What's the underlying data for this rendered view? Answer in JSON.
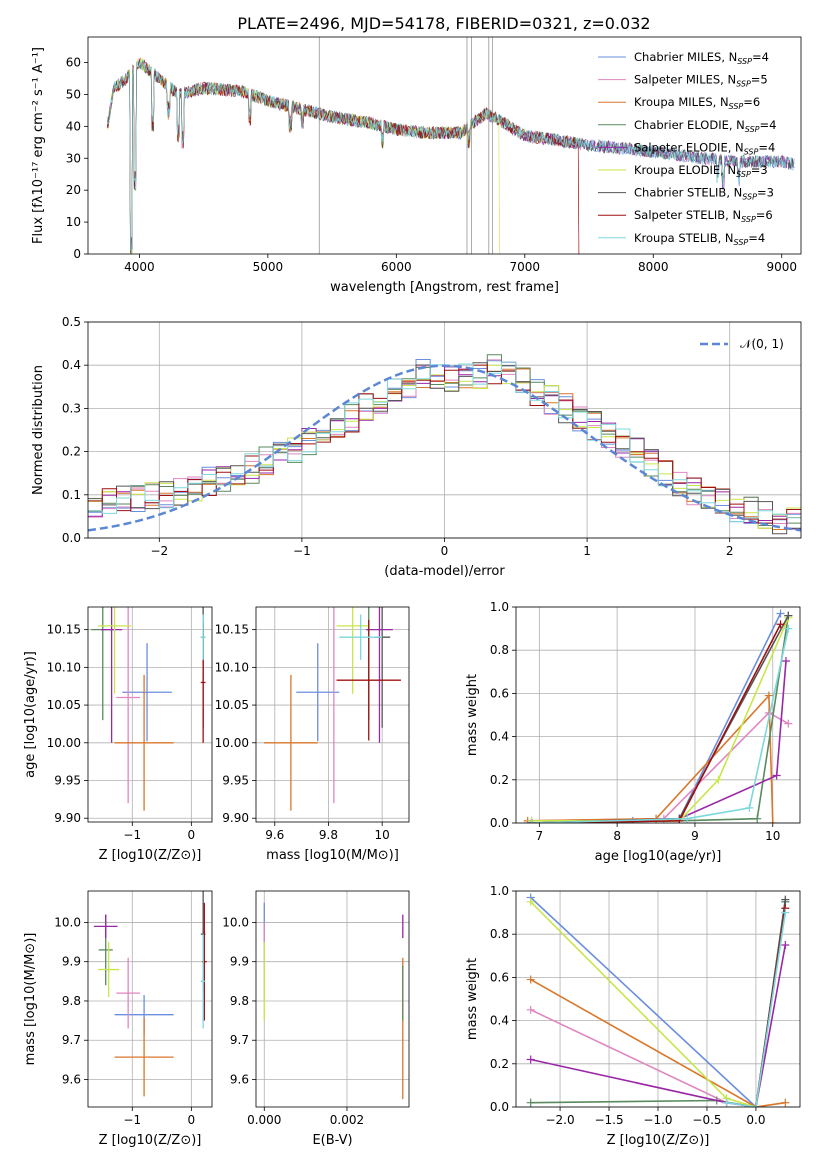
{
  "title": "PLATE=2496, MJD=54178, FIBERID=0321, z=0.032",
  "models": [
    {
      "name": "Chabrier MILES",
      "n": "4",
      "color": "#6a8fdc"
    },
    {
      "name": "Salpeter MILES",
      "n": "5",
      "color": "#e086c0"
    },
    {
      "name": "Kroupa MILES",
      "n": "6",
      "color": "#d9772b"
    },
    {
      "name": "Chabrier ELODIE",
      "n": "4",
      "color": "#5a8a5e"
    },
    {
      "name": "Salpeter ELODIE",
      "n": "4",
      "color": "#9a27a8"
    },
    {
      "name": "Kroupa ELODIE",
      "n": "3",
      "color": "#c8e64a"
    },
    {
      "name": "Chabrier STELIB",
      "n": "3",
      "color": "#555555"
    },
    {
      "name": "Salpeter STELIB",
      "n": "6",
      "color": "#a01010"
    },
    {
      "name": "Kroupa STELIB",
      "n": "4",
      "color": "#7dd8dc"
    }
  ],
  "chart_data": [
    {
      "id": "spectrum",
      "type": "line",
      "xlabel": "wavelength [Angstrom, rest frame]",
      "ylabel": "Flux [fλ10⁻¹⁷ erg cm⁻² s⁻¹ A⁻¹]",
      "xlim": [
        3600,
        9150
      ],
      "ylim": [
        0,
        68
      ],
      "xticks": [
        4000,
        5000,
        6000,
        7000,
        8000,
        9000
      ],
      "yticks": [
        0,
        10,
        20,
        30,
        40,
        50,
        60
      ],
      "grid": false,
      "legend": "top-right",
      "continuum": [
        [
          3750,
          40
        ],
        [
          3800,
          52
        ],
        [
          3900,
          55
        ],
        [
          4000,
          60
        ],
        [
          4100,
          57
        ],
        [
          4300,
          50
        ],
        [
          4500,
          52
        ],
        [
          4800,
          51
        ],
        [
          5000,
          48
        ],
        [
          5200,
          46
        ],
        [
          5500,
          43
        ],
        [
          5800,
          41
        ],
        [
          6000,
          39
        ],
        [
          6200,
          38
        ],
        [
          6500,
          38
        ],
        [
          6700,
          44
        ],
        [
          6800,
          42
        ],
        [
          7000,
          37
        ],
        [
          7200,
          36
        ],
        [
          7500,
          34
        ],
        [
          7800,
          33
        ],
        [
          8200,
          31
        ],
        [
          8600,
          29
        ],
        [
          9000,
          29
        ],
        [
          9100,
          28
        ]
      ],
      "dips": [
        [
          3934,
          0
        ],
        [
          3968,
          20
        ],
        [
          4102,
          38
        ],
        [
          4227,
          42
        ],
        [
          4300,
          35
        ],
        [
          4340,
          33
        ],
        [
          4861,
          40
        ],
        [
          5175,
          38
        ],
        [
          5270,
          39
        ],
        [
          5890,
          33
        ],
        [
          6563,
          33
        ],
        [
          8500,
          22
        ],
        [
          8542,
          20
        ],
        [
          8662,
          21
        ]
      ]
    },
    {
      "id": "residuals",
      "type": "step",
      "xlabel": "(data-model)/error",
      "ylabel": "Normed distribution",
      "xlim": [
        -2.5,
        2.5
      ],
      "ylim": [
        0,
        0.5
      ],
      "xticks": [
        -2,
        -1,
        0,
        1,
        2
      ],
      "yticks": [
        0,
        0.1,
        0.2,
        0.3,
        0.4,
        0.5
      ],
      "grid": true,
      "legend": "top-right",
      "legend_label": "𝒩(0, 1)",
      "bin_width": 0.1,
      "base_hist": [
        0.07,
        0.08,
        0.09,
        0.09,
        0.1,
        0.1,
        0.11,
        0.12,
        0.13,
        0.14,
        0.15,
        0.16,
        0.18,
        0.19,
        0.21,
        0.22,
        0.24,
        0.26,
        0.28,
        0.3,
        0.32,
        0.34,
        0.36,
        0.38,
        0.38,
        0.37,
        0.37,
        0.38,
        0.39,
        0.38,
        0.36,
        0.34,
        0.32,
        0.3,
        0.28,
        0.26,
        0.24,
        0.22,
        0.2,
        0.17,
        0.15,
        0.13,
        0.11,
        0.09,
        0.08,
        0.07,
        0.06,
        0.05,
        0.04,
        0.04
      ]
    },
    {
      "id": "age_vs_z",
      "type": "errorbar",
      "xlabel": "Z [log10(Z/Z⊙)]",
      "ylabel": "age  [log10(age/yr)]",
      "xlim": [
        -1.75,
        0.35
      ],
      "ylim": [
        9.895,
        10.18
      ],
      "xticks": [
        -1,
        0
      ],
      "yticks": [
        9.9,
        9.95,
        10.0,
        10.05,
        10.1,
        10.15
      ],
      "grid": true,
      "points": [
        [
          -0.75,
          10.067,
          0.42,
          0.065
        ],
        [
          -1.07,
          10.06,
          0.2,
          0.14
        ],
        [
          -0.8,
          10.0,
          0.5,
          0.09
        ],
        [
          -1.5,
          10.15,
          0.2,
          0.12
        ],
        [
          -1.35,
          10.15,
          0.18,
          0.15
        ],
        [
          -1.3,
          10.155,
          0.28,
          0.09
        ],
        [
          0.2,
          10.14,
          0.04,
          0.12
        ],
        [
          0.2,
          10.08,
          0.04,
          0.08
        ],
        [
          0.2,
          10.14,
          0.04,
          0.03
        ]
      ]
    },
    {
      "id": "age_vs_mass",
      "type": "errorbar",
      "xlabel": "mass [log10(M/M⊙)]",
      "ylabel": "",
      "xlim": [
        9.53,
        10.1
      ],
      "ylim": [
        9.895,
        10.18
      ],
      "xticks": [
        9.6,
        9.8,
        10.0
      ],
      "yticks": [
        9.9,
        9.95,
        10.0,
        10.05,
        10.1,
        10.15
      ],
      "grid": true,
      "points": [
        [
          9.76,
          10.067,
          0.08,
          0.065
        ],
        [
          9.82,
          10.06,
          0.0,
          0.14
        ],
        [
          9.66,
          10.0,
          0.1,
          0.09
        ],
        [
          9.95,
          10.15,
          0.0,
          0.12
        ],
        [
          9.99,
          10.15,
          0.05,
          0.15
        ],
        [
          9.89,
          10.155,
          0.06,
          0.09
        ],
        [
          10.0,
          10.14,
          0.03,
          0.12
        ],
        [
          9.95,
          10.083,
          0.12,
          0.08
        ],
        [
          9.92,
          10.14,
          0.08,
          0.03
        ]
      ]
    },
    {
      "id": "weight_vs_age",
      "type": "line",
      "xlabel": "age  [log10(age/yr)]",
      "ylabel": "mass weight",
      "xlim": [
        6.7,
        10.35
      ],
      "ylim": [
        0,
        1
      ],
      "xticks": [
        7,
        8,
        9,
        10
      ],
      "yticks": [
        0,
        0.2,
        0.4,
        0.6,
        0.8,
        1.0
      ],
      "grid": true,
      "lines": [
        [
          [
            6.85,
            0
          ],
          [
            8.2,
            0.01
          ],
          [
            8.8,
            0.02
          ],
          [
            10.1,
            0.97
          ]
        ],
        [
          [
            6.9,
            0.01
          ],
          [
            8.6,
            0.02
          ],
          [
            9.95,
            0.51
          ],
          [
            10.2,
            0.46
          ]
        ],
        [
          [
            6.85,
            0.01
          ],
          [
            8.5,
            0.02
          ],
          [
            9.95,
            0.59
          ],
          [
            10.0,
            0.0
          ]
        ],
        [
          [
            6.9,
            0.0
          ],
          [
            8.8,
            0.01
          ],
          [
            9.8,
            0.02
          ],
          [
            10.2,
            0.96
          ]
        ],
        [
          [
            6.9,
            0.0
          ],
          [
            8.8,
            0.02
          ],
          [
            10.05,
            0.22
          ],
          [
            10.17,
            0.75
          ]
        ],
        [
          [
            6.9,
            0.01
          ],
          [
            8.8,
            0.01
          ],
          [
            9.3,
            0.2
          ],
          [
            10.2,
            0.95
          ]
        ],
        [
          [
            6.9,
            0.0
          ],
          [
            8.8,
            0.02
          ],
          [
            10.2,
            0.96
          ]
        ],
        [
          [
            6.9,
            0.0
          ],
          [
            8.8,
            0.01
          ],
          [
            10.1,
            0.92
          ]
        ],
        [
          [
            6.9,
            0.0
          ],
          [
            8.9,
            0.02
          ],
          [
            9.7,
            0.07
          ],
          [
            10.2,
            0.9
          ]
        ]
      ]
    },
    {
      "id": "mass_vs_z",
      "type": "errorbar",
      "xlabel": "Z [log10(Z/Z⊙)]",
      "ylabel": "mass [log10(M/M⊙)]",
      "xlim": [
        -1.75,
        0.35
      ],
      "ylim": [
        9.53,
        10.08
      ],
      "xticks": [
        -1,
        0
      ],
      "yticks": [
        9.6,
        9.7,
        9.8,
        9.9,
        10.0
      ],
      "grid": true,
      "points": [
        [
          -0.8,
          9.765,
          0.5,
          0.05
        ],
        [
          -1.07,
          9.82,
          0.2,
          0.09
        ],
        [
          -0.8,
          9.657,
          0.5,
          0.1
        ],
        [
          -1.45,
          9.93,
          0.12,
          0.09
        ],
        [
          -1.45,
          9.99,
          0.2,
          0.03
        ],
        [
          -1.4,
          9.88,
          0.18,
          0.07
        ],
        [
          0.2,
          9.97,
          0.04,
          0.15
        ],
        [
          0.22,
          9.9,
          0.04,
          0.15
        ],
        [
          0.2,
          9.85,
          0.04,
          0.12
        ]
      ]
    },
    {
      "id": "mass_vs_ebv",
      "type": "errorbar",
      "xlabel": "E(B-V)",
      "ylabel": "",
      "xlim": [
        -0.0002,
        0.0035
      ],
      "ylim": [
        9.53,
        10.08
      ],
      "xticks": [
        0.0,
        0.002
      ],
      "xtick_labels": [
        "0.000",
        "0.002"
      ],
      "yticks": [
        9.6,
        9.7,
        9.8,
        9.9,
        10.0
      ],
      "grid": true,
      "points": [
        [
          0.0,
          9.97,
          0,
          0.08
        ],
        [
          0.0,
          9.9,
          0,
          0.1
        ],
        [
          0.00335,
          9.73,
          0,
          0.18
        ],
        [
          0.00335,
          9.82,
          0,
          0.07
        ],
        [
          0.00335,
          9.99,
          0,
          0.03
        ],
        [
          0.0,
          9.85,
          0,
          0.1
        ]
      ]
    },
    {
      "id": "weight_vs_z",
      "type": "line",
      "xlabel": "Z [log10(Z/Z⊙)]",
      "ylabel": "mass weight",
      "xlim": [
        -2.45,
        0.45
      ],
      "ylim": [
        0,
        1
      ],
      "xticks": [
        -2.0,
        -1.5,
        -1.0,
        -0.5,
        0.0
      ],
      "xtick_labels": [
        "−2.0",
        "−1.5",
        "−1.0",
        "−0.5",
        "0.0"
      ],
      "yticks": [
        0,
        0.2,
        0.4,
        0.6,
        0.8,
        1.0
      ],
      "grid": true,
      "lines": [
        [
          [
            -2.3,
            0.97
          ],
          [
            0.0,
            0.0
          ],
          [
            0.3,
            0.95
          ]
        ],
        [
          [
            -2.3,
            0.45
          ],
          [
            -0.3,
            0.02
          ],
          [
            0.0,
            0.0
          ]
        ],
        [
          [
            -2.3,
            0.59
          ],
          [
            0.0,
            0.0
          ],
          [
            0.3,
            0.02
          ]
        ],
        [
          [
            -2.3,
            0.02
          ],
          [
            -0.4,
            0.03
          ],
          [
            0.0,
            0.0
          ],
          [
            0.3,
            0.95
          ]
        ],
        [
          [
            -2.3,
            0.22
          ],
          [
            -0.3,
            0.02
          ],
          [
            0.0,
            0.0
          ],
          [
            0.3,
            0.75
          ]
        ],
        [
          [
            -2.3,
            0.95
          ],
          [
            -0.3,
            0.04
          ],
          [
            0.0,
            0.0
          ]
        ],
        [
          [
            0.0,
            0.0
          ],
          [
            0.3,
            0.96
          ]
        ],
        [
          [
            0.0,
            0.0
          ],
          [
            0.3,
            0.92
          ]
        ],
        [
          [
            -0.3,
            0.02
          ],
          [
            0.0,
            0.0
          ],
          [
            0.3,
            0.9
          ]
        ]
      ]
    }
  ]
}
